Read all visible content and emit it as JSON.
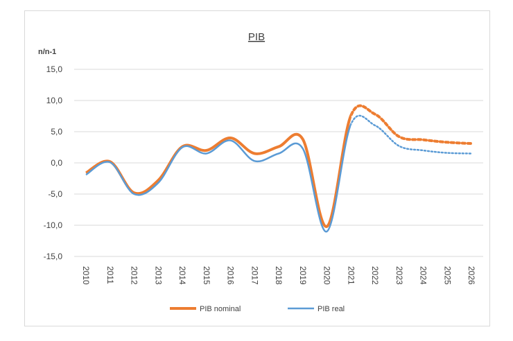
{
  "chart_data": {
    "type": "line",
    "title": "PIB",
    "ylabel": "n/n-1",
    "xlabel": "",
    "ylim": [
      -15,
      15
    ],
    "yticks": [
      15,
      10,
      5,
      0,
      -5,
      -10,
      -15
    ],
    "ytick_labels": [
      "15,0",
      "10,0",
      "5,0",
      "0,0",
      "-5,0",
      "-10,0",
      "-15,0"
    ],
    "grid": true,
    "legend": "bottom",
    "categories": [
      "2010",
      "2011",
      "2012",
      "2013",
      "2014",
      "2015",
      "2016",
      "2017",
      "2018",
      "2019",
      "2020",
      "2021",
      "2022",
      "2023",
      "2024",
      "2025",
      "2026"
    ],
    "forecast_from": "2021",
    "series": [
      {
        "name": "PIB nominal",
        "color": "#ed7d31",
        "values": [
          -1.6,
          0.2,
          -4.8,
          -2.8,
          2.6,
          2.0,
          4.0,
          1.5,
          2.6,
          3.8,
          -10.2,
          7.6,
          7.8,
          4.2,
          3.7,
          3.3,
          3.1
        ]
      },
      {
        "name": "PIB real",
        "color": "#5b9bd5",
        "values": [
          -1.9,
          0.1,
          -5.0,
          -3.2,
          2.5,
          1.5,
          3.6,
          0.3,
          1.5,
          2.3,
          -11.0,
          6.2,
          6.0,
          2.7,
          2.0,
          1.6,
          1.5
        ]
      }
    ]
  }
}
